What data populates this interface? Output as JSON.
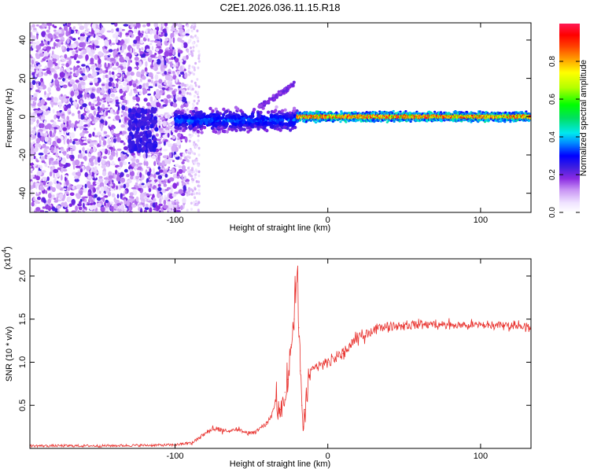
{
  "figure": {
    "title": "C2E1.2026.036.11.15.R18"
  },
  "chart_data": [
    {
      "type": "heatmap",
      "title": "C2E1.2026.036.11.15.R18",
      "xlabel": "Height of straight line (km)",
      "ylabel": "Frequency (Hz)",
      "xlim": [
        -195,
        133
      ],
      "ylim": [
        -50,
        49
      ],
      "xticks": [
        -100,
        0,
        100
      ],
      "xtick_labels": [
        "-100",
        "0",
        "100"
      ],
      "yticks": [
        -40,
        -20,
        0,
        20,
        40
      ],
      "ytick_labels": [
        "-40",
        "-20",
        "0",
        "20",
        "40"
      ],
      "colorbar": {
        "label": "Normalized spectral amplitude",
        "range": [
          0.0,
          1.0
        ],
        "ticks": [
          0.0,
          0.2,
          0.4,
          0.6,
          0.8
        ],
        "tick_labels": [
          "0.0",
          "0.2",
          "0.4",
          "0.6",
          "0.8"
        ]
      },
      "features": [
        {
          "name": "broadband noise",
          "x_range": [
            -195,
            -92
          ],
          "freq_range": [
            -50,
            49
          ],
          "amplitude": 0.1
        },
        {
          "name": "emerging signal",
          "x_range": [
            -100,
            -20
          ],
          "center_freq": -2,
          "amplitude": 0.35
        },
        {
          "name": "side branch",
          "x_range": [
            -45,
            -22
          ],
          "freq_range": [
            5,
            18
          ],
          "amplitude": 0.2
        },
        {
          "name": "stable tone",
          "x_range": [
            -20,
            133
          ],
          "center_freq": 0,
          "amplitude": 0.9
        }
      ]
    },
    {
      "type": "line",
      "xlabel": "Height of straight line (km)",
      "ylabel": "SNR (10 * v/v)",
      "y_multiplier": "(x10",
      "y_multiplier_exp": "4",
      "xlim": [
        -195,
        133
      ],
      "ylim": [
        0,
        22000
      ],
      "xticks": [
        -100,
        0,
        100
      ],
      "xtick_labels": [
        "-100",
        "0",
        "100"
      ],
      "yticks": [
        5000,
        10000,
        15000,
        20000
      ],
      "ytick_labels": [
        "0.5",
        "1.0",
        "1.5",
        "2.0"
      ],
      "color": "#e8302c",
      "series": [
        {
          "name": "SNR",
          "x": [
            -195,
            -150,
            -100,
            -90,
            -85,
            -80,
            -75,
            -70,
            -65,
            -60,
            -55,
            -50,
            -45,
            -40,
            -37,
            -34,
            -31,
            -28,
            -26,
            -24,
            -22,
            -20,
            -19,
            -18,
            -17,
            -16,
            -15,
            -14,
            -12,
            -10,
            -5,
            0,
            5,
            10,
            15,
            20,
            25,
            30,
            35,
            40,
            50,
            60,
            70,
            80,
            90,
            100,
            110,
            120,
            133
          ],
          "y": [
            150,
            150,
            250,
            500,
            1100,
            1800,
            2200,
            2100,
            2000,
            2200,
            1900,
            1700,
            2200,
            2800,
            3800,
            5500,
            4500,
            6500,
            8000,
            12000,
            15000,
            22000,
            14000,
            9000,
            5000,
            2500,
            4500,
            6500,
            8200,
            9200,
            9600,
            10000,
            10500,
            11000,
            12000,
            12800,
            13400,
            13800,
            14100,
            14200,
            14300,
            14400,
            14400,
            14300,
            14300,
            14300,
            14300,
            14300,
            14200
          ]
        }
      ]
    }
  ]
}
